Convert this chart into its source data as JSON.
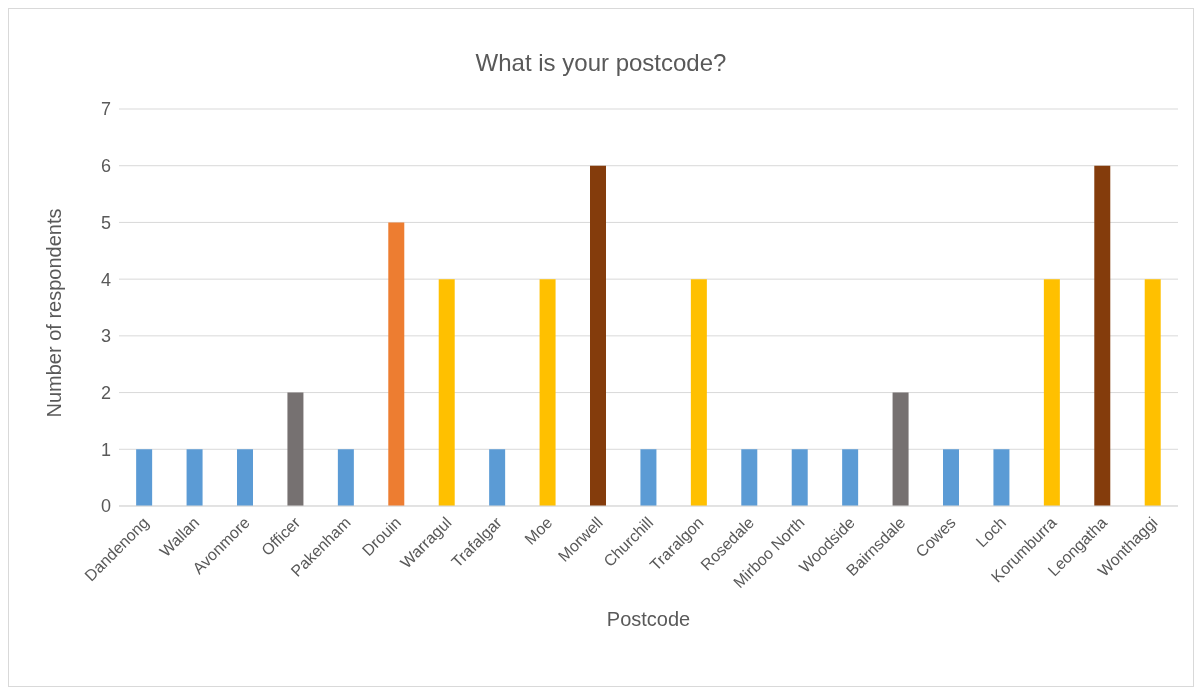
{
  "chart_data": {
    "type": "bar",
    "title": "What is your postcode?",
    "xlabel": "Postcode",
    "ylabel": "Number of respondents",
    "categories": [
      "Dandenong",
      "Wallan",
      "Avonmore",
      "Officer",
      "Pakenham",
      "Drouin",
      "Warragul",
      "Trafalgar",
      "Moe",
      "Morwell",
      "Churchill",
      "Traralgon",
      "Rosedale",
      "Mirboo North",
      "Woodside",
      "Bairnsdale",
      "Cowes",
      "Loch",
      "Korumburra",
      "Leongatha",
      "Wonthaggi"
    ],
    "values": [
      1,
      1,
      1,
      2,
      1,
      5,
      4,
      1,
      4,
      6,
      1,
      4,
      1,
      1,
      1,
      2,
      1,
      1,
      4,
      6,
      4
    ],
    "colors": [
      "#5b9bd5",
      "#5b9bd5",
      "#5b9bd5",
      "#767171",
      "#5b9bd5",
      "#ed7d31",
      "#ffc000",
      "#5b9bd5",
      "#ffc000",
      "#843c0c",
      "#5b9bd5",
      "#ffc000",
      "#5b9bd5",
      "#5b9bd5",
      "#5b9bd5",
      "#767171",
      "#5b9bd5",
      "#5b9bd5",
      "#ffc000",
      "#843c0c",
      "#ffc000"
    ],
    "ylim": [
      0,
      7
    ],
    "yticks": [
      0,
      1,
      2,
      3,
      4,
      5,
      6,
      7
    ],
    "grid": "y",
    "legend": false
  }
}
